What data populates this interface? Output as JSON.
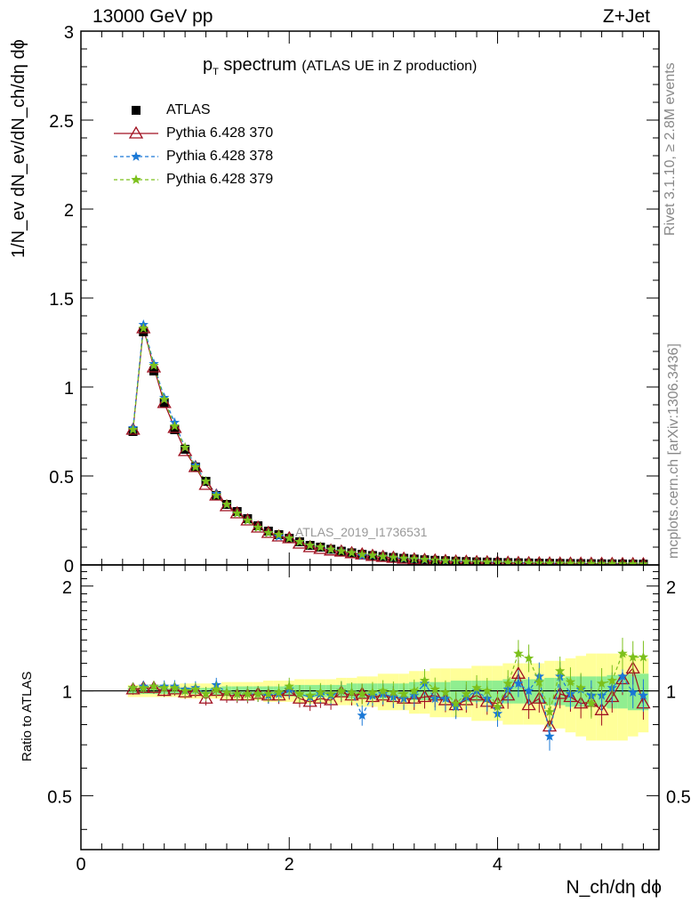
{
  "header": {
    "left": "13000 GeV pp",
    "right": "Z+Jet"
  },
  "plot_title": {
    "main": "p",
    "main_sub": "T",
    "main_rest": " spectrum",
    "detail": "(ATLAS UE in Z production)"
  },
  "watermark": "ATLAS_2019_I1736531",
  "side_texts": {
    "rivet": "Rivet 3.1.10, ≥ 2.8M events",
    "mcplots": "mcplots.cern.ch [arXiv:1306.3436]"
  },
  "axes": {
    "ylabel_top": "1/N_ev dN_ev/dN_ch/dη dϕ",
    "ylabel_bottom": "Ratio to ATLAS",
    "xlabel": "N_ch/dη dϕ"
  },
  "colors": {
    "data": "#000000",
    "p370": "#a01020",
    "p378": "#1a78d6",
    "p379": "#7cc01c",
    "band_outer": "#ffff99",
    "band_inner": "#90ee90"
  },
  "chart_data": [
    {
      "type": "scatter",
      "panel": "main",
      "xlim": [
        0,
        5.55
      ],
      "ylim": [
        0,
        3.0
      ],
      "x_ticks": [
        0,
        2,
        4
      ],
      "y_ticks": [
        0,
        0.5,
        1,
        1.5,
        2,
        2.5,
        3
      ],
      "y_tick_labels": [
        "0",
        "0.5",
        "1",
        "1.5",
        "2",
        "2.5",
        "3"
      ],
      "legend_position": "top-left",
      "x": [
        0.5,
        0.6,
        0.7,
        0.8,
        0.9,
        1.0,
        1.1,
        1.2,
        1.3,
        1.4,
        1.5,
        1.6,
        1.7,
        1.8,
        1.9,
        2.0,
        2.1,
        2.2,
        2.3,
        2.4,
        2.5,
        2.6,
        2.7,
        2.8,
        2.9,
        3.0,
        3.1,
        3.2,
        3.3,
        3.4,
        3.5,
        3.6,
        3.7,
        3.8,
        3.9,
        4.0,
        4.1,
        4.2,
        4.3,
        4.4,
        4.5,
        4.6,
        4.7,
        4.8,
        4.9,
        5.0,
        5.1,
        5.2,
        5.3,
        5.4
      ],
      "series": [
        {
          "name": "ATLAS",
          "marker": "square",
          "values": [
            0.75,
            1.31,
            1.09,
            0.91,
            0.76,
            0.65,
            0.55,
            0.47,
            0.39,
            0.34,
            0.3,
            0.26,
            0.22,
            0.19,
            0.17,
            0.15,
            0.13,
            0.11,
            0.1,
            0.088,
            0.077,
            0.068,
            0.06,
            0.053,
            0.047,
            0.042,
            0.037,
            0.033,
            0.029,
            0.026,
            0.024,
            0.021,
            0.019,
            0.017,
            0.016,
            0.014,
            0.013,
            0.012,
            0.011,
            0.01,
            0.009,
            0.0085,
            0.008,
            0.0075,
            0.007,
            0.0065,
            0.006,
            0.0055,
            0.005,
            0.0045
          ]
        },
        {
          "name": "Pythia 6.428 370",
          "marker": "triangle",
          "line": "solid",
          "values": [
            0.76,
            1.33,
            1.11,
            0.91,
            0.77,
            0.64,
            0.55,
            0.45,
            0.39,
            0.33,
            0.29,
            0.25,
            0.21,
            0.18,
            0.16,
            0.15,
            0.12,
            0.1,
            0.09,
            0.081,
            0.075,
            0.066,
            0.059,
            0.051,
            0.045,
            0.04,
            0.035,
            0.031,
            0.028,
            0.025,
            0.022,
            0.019,
            0.018,
            0.016,
            0.015,
            0.013,
            0.012,
            0.011,
            0.01,
            0.009,
            0.0085,
            0.008,
            0.0075,
            0.007,
            0.0065,
            0.006,
            0.0055,
            0.005,
            0.0045,
            0.004
          ]
        },
        {
          "name": "Pythia 6.428 378",
          "marker": "star",
          "line": "dashed",
          "values": [
            0.77,
            1.35,
            1.13,
            0.94,
            0.8,
            0.66,
            0.56,
            0.47,
            0.4,
            0.34,
            0.29,
            0.25,
            0.21,
            0.18,
            0.16,
            0.15,
            0.13,
            0.11,
            0.1,
            0.086,
            0.078,
            0.068,
            0.051,
            0.052,
            0.046,
            0.04,
            0.035,
            0.031,
            0.028,
            0.025,
            0.022,
            0.019,
            0.018,
            0.016,
            0.015,
            0.013,
            0.012,
            0.011,
            0.01,
            0.009,
            0.0085,
            0.008,
            0.0075,
            0.007,
            0.0065,
            0.006,
            0.0055,
            0.005,
            0.0045,
            0.004
          ]
        },
        {
          "name": "Pythia 6.428 379",
          "marker": "star",
          "line": "dashed",
          "values": [
            0.76,
            1.33,
            1.12,
            0.93,
            0.78,
            0.66,
            0.55,
            0.47,
            0.39,
            0.34,
            0.29,
            0.25,
            0.21,
            0.18,
            0.17,
            0.15,
            0.13,
            0.11,
            0.1,
            0.087,
            0.077,
            0.068,
            0.059,
            0.054,
            0.047,
            0.042,
            0.037,
            0.033,
            0.03,
            0.026,
            0.024,
            0.021,
            0.019,
            0.017,
            0.016,
            0.014,
            0.013,
            0.012,
            0.011,
            0.01,
            0.009,
            0.0085,
            0.008,
            0.0075,
            0.007,
            0.0065,
            0.006,
            0.0055,
            0.005,
            0.0045
          ]
        }
      ]
    },
    {
      "type": "scatter",
      "panel": "ratio",
      "xlim": [
        0,
        5.55
      ],
      "ylim": [
        0.35,
        2.3
      ],
      "x_ticks": [
        0,
        2,
        4
      ],
      "x_tick_labels": [
        "0",
        "2",
        "4"
      ],
      "y_ticks": [
        0.5,
        1,
        2
      ],
      "y_tick_labels": [
        "0.5",
        "1",
        "2"
      ],
      "x": [
        0.5,
        0.6,
        0.7,
        0.8,
        0.9,
        1.0,
        1.1,
        1.2,
        1.3,
        1.4,
        1.5,
        1.6,
        1.7,
        1.8,
        1.9,
        2.0,
        2.1,
        2.2,
        2.3,
        2.4,
        2.5,
        2.6,
        2.7,
        2.8,
        2.9,
        3.0,
        3.1,
        3.2,
        3.3,
        3.4,
        3.5,
        3.6,
        3.7,
        3.8,
        3.9,
        4.0,
        4.1,
        4.2,
        4.3,
        4.4,
        4.5,
        4.6,
        4.7,
        4.8,
        4.9,
        5.0,
        5.1,
        5.2,
        5.3,
        5.4
      ],
      "band_inner": [
        0.02,
        0.02,
        0.02,
        0.02,
        0.02,
        0.02,
        0.02,
        0.02,
        0.025,
        0.03,
        0.03,
        0.03,
        0.03,
        0.03,
        0.03,
        0.035,
        0.04,
        0.04,
        0.04,
        0.04,
        0.04,
        0.05,
        0.05,
        0.05,
        0.05,
        0.05,
        0.05,
        0.06,
        0.06,
        0.06,
        0.06,
        0.07,
        0.07,
        0.07,
        0.07,
        0.07,
        0.08,
        0.08,
        0.08,
        0.08,
        0.09,
        0.09,
        0.1,
        0.1,
        0.1,
        0.1,
        0.11,
        0.11,
        0.12,
        0.12
      ],
      "band_outer": [
        0.04,
        0.04,
        0.04,
        0.04,
        0.04,
        0.05,
        0.05,
        0.05,
        0.05,
        0.06,
        0.06,
        0.06,
        0.06,
        0.07,
        0.07,
        0.07,
        0.08,
        0.08,
        0.08,
        0.08,
        0.09,
        0.09,
        0.1,
        0.1,
        0.12,
        0.12,
        0.12,
        0.14,
        0.14,
        0.16,
        0.16,
        0.16,
        0.16,
        0.18,
        0.18,
        0.18,
        0.2,
        0.2,
        0.2,
        0.2,
        0.22,
        0.22,
        0.24,
        0.26,
        0.28,
        0.28,
        0.28,
        0.28,
        0.26,
        0.24
      ],
      "series": [
        {
          "name": "Pythia 6.428 370",
          "marker": "triangle",
          "line": "solid",
          "values": [
            1.01,
            1.02,
            1.02,
            1.0,
            1.01,
            0.99,
            1.0,
            0.95,
            1.0,
            0.97,
            0.97,
            0.97,
            0.98,
            0.97,
            0.97,
            1.0,
            0.95,
            0.93,
            0.95,
            0.94,
            0.99,
            0.97,
            0.98,
            0.96,
            0.97,
            0.96,
            0.95,
            0.95,
            0.96,
            0.97,
            0.94,
            0.91,
            0.94,
            0.97,
            0.93,
            0.92,
            0.97,
            1.12,
            0.91,
            0.95,
            0.79,
            0.98,
            0.96,
            0.92,
            0.93,
            0.88,
            0.96,
            1.08,
            1.16,
            0.92
          ]
        },
        {
          "name": "Pythia 6.428 378",
          "marker": "star",
          "line": "dashed",
          "values": [
            1.02,
            1.03,
            1.03,
            1.03,
            1.03,
            1.01,
            1.02,
            0.98,
            1.04,
            0.99,
            0.98,
            0.98,
            0.98,
            0.97,
            0.98,
            1.01,
            0.98,
            0.96,
            0.98,
            0.97,
            1.0,
            0.99,
            0.85,
            0.97,
            0.98,
            0.96,
            0.95,
            0.97,
            1.05,
            0.95,
            0.95,
            0.9,
            0.96,
            1.0,
            0.95,
            0.86,
            1.01,
            1.05,
            1.0,
            1.1,
            0.74,
            1.1,
            0.98,
            1.01,
            0.97,
            0.97,
            1.02,
            1.1,
            0.99,
            0.97
          ]
        },
        {
          "name": "Pythia 6.428 379",
          "marker": "star",
          "line": "dashed",
          "values": [
            1.02,
            1.02,
            1.03,
            1.02,
            1.02,
            1.0,
            1.01,
            0.98,
            1.01,
            0.99,
            0.98,
            0.98,
            0.98,
            0.98,
            0.99,
            1.03,
            0.98,
            0.97,
            0.99,
            0.98,
            1.0,
            0.99,
            0.98,
            0.99,
            1.0,
            0.99,
            0.98,
            1.0,
            1.07,
            1.01,
            0.99,
            0.92,
            0.98,
            1.02,
            1.0,
            0.9,
            1.05,
            1.28,
            1.24,
            1.06,
            0.87,
            1.14,
            1.06,
            1.02,
            0.92,
            1.05,
            1.07,
            1.28,
            1.25,
            1.25
          ]
        }
      ]
    }
  ]
}
